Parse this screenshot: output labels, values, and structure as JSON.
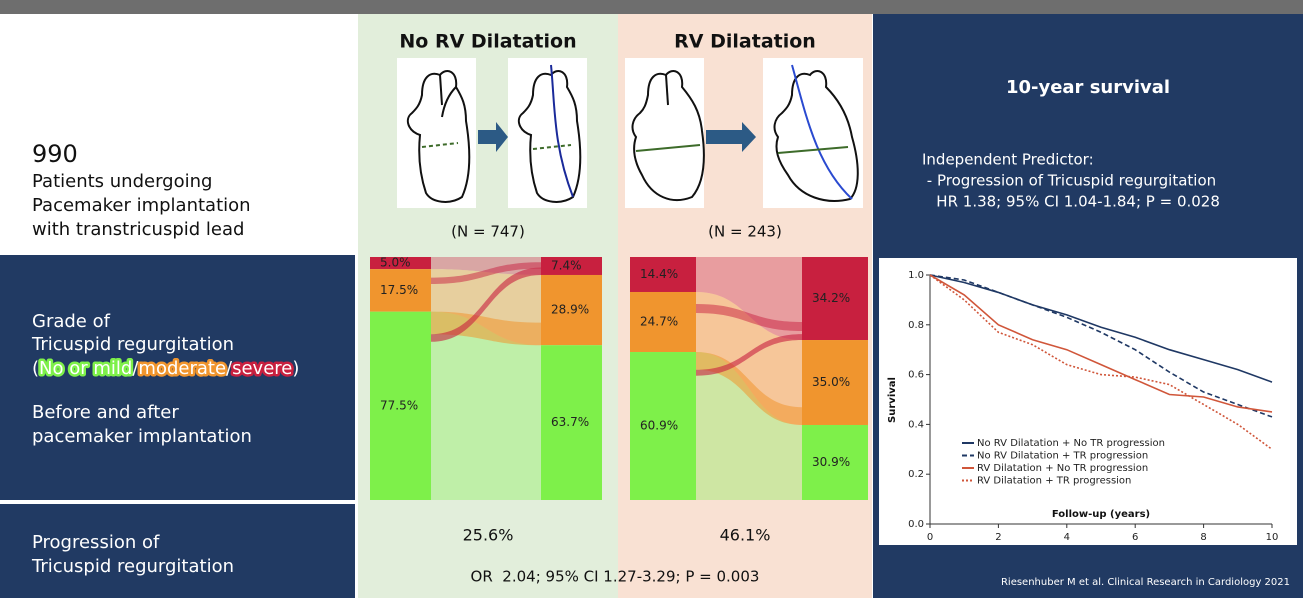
{
  "left_panel": {
    "count": "990",
    "lines": [
      "Patients undergoing",
      "Pacemaker implantation",
      "with transtricuspid lead"
    ]
  },
  "grade_panel": {
    "lines": [
      "Grade of",
      "Tricuspid regurgitation"
    ],
    "grade_legend": [
      "(",
      "No or mild",
      "/",
      "moderate",
      "/",
      "severe",
      ")"
    ],
    "timing": [
      "Before and after",
      "pacemaker implantation"
    ]
  },
  "progression_panel": {
    "lines": [
      "Progression of",
      "Tricuspid regurgitation"
    ]
  },
  "segment_colors": [
    "#c8203f",
    "#f0952e",
    "#7ef04a"
  ],
  "groups": [
    {
      "title": "No RV Dilatation",
      "n_label": "(N = 747)",
      "before": {
        "values": [
          5.0,
          17.5,
          77.5
        ],
        "value_labels": [
          "5.0%",
          "17.5%",
          "77.5%"
        ]
      },
      "after": {
        "values": [
          7.4,
          28.9,
          63.7
        ],
        "value_labels": [
          "7.4%",
          "28.9%",
          "63.7%"
        ]
      },
      "progression": "25.6%"
    },
    {
      "title": "RV Dilatation",
      "n_label": "(N = 243)",
      "before": {
        "values": [
          14.4,
          24.7,
          60.9
        ],
        "value_labels": [
          "14.4%",
          "24.7%",
          "60.9%"
        ]
      },
      "after": {
        "values": [
          34.2,
          35.0,
          30.9
        ],
        "value_labels": [
          "34.2%",
          "35.0%",
          "30.9%"
        ]
      },
      "progression": "46.1%"
    }
  ],
  "odds_ratio": "OR  2.04; 95% CI 1.27-3.29; P = 0.003",
  "survival": {
    "title": "10-year survival",
    "predictor_lines": [
      "Independent Predictor:",
      " - Progression of Tricuspid regurgitation",
      "   HR 1.38; 95% CI 1.04-1.84; P = 0.028"
    ],
    "citation": "Riesenhuber M et al. Clinical Research in Cardiology 2021"
  },
  "survival_chart": {
    "type": "line",
    "y_label": "Survival",
    "x_label": "Follow-up (years)",
    "x": [
      0,
      1,
      2,
      3,
      4,
      5,
      6,
      7,
      8,
      9,
      10
    ],
    "xlim": [
      0,
      10
    ],
    "xticks": [
      0,
      2,
      4,
      6,
      8,
      10
    ],
    "ylim": [
      0,
      1
    ],
    "yticks": [
      {
        "value": 0,
        "label": "0.0"
      },
      {
        "value": 0.2,
        "label": "0.2"
      },
      {
        "value": 0.4,
        "label": "0.4"
      },
      {
        "value": 0.6,
        "label": "0.6"
      },
      {
        "value": 0.8,
        "label": "0.8"
      },
      {
        "value": 1,
        "label": "1.0"
      }
    ],
    "series": [
      {
        "name": "No RV Dilatation + No TR progression",
        "color": "#1f3864",
        "dash": "solid",
        "values": [
          1.0,
          0.97,
          0.93,
          0.88,
          0.84,
          0.79,
          0.75,
          0.7,
          0.66,
          0.62,
          0.57
        ]
      },
      {
        "name": "No RV Dilatation + TR progression",
        "color": "#1f3864",
        "dash": "dashed",
        "values": [
          1.0,
          0.98,
          0.93,
          0.88,
          0.83,
          0.77,
          0.7,
          0.61,
          0.53,
          0.48,
          0.43
        ]
      },
      {
        "name": "RV Dilatation + No TR progression",
        "color": "#d0563a",
        "dash": "solid",
        "values": [
          1.0,
          0.92,
          0.8,
          0.74,
          0.7,
          0.64,
          0.58,
          0.52,
          0.51,
          0.47,
          0.45
        ]
      },
      {
        "name": "RV Dilatation + TR progression",
        "color": "#d0563a",
        "dash": "dotted",
        "values": [
          1.0,
          0.9,
          0.77,
          0.72,
          0.64,
          0.6,
          0.59,
          0.56,
          0.48,
          0.4,
          0.3
        ]
      }
    ]
  }
}
